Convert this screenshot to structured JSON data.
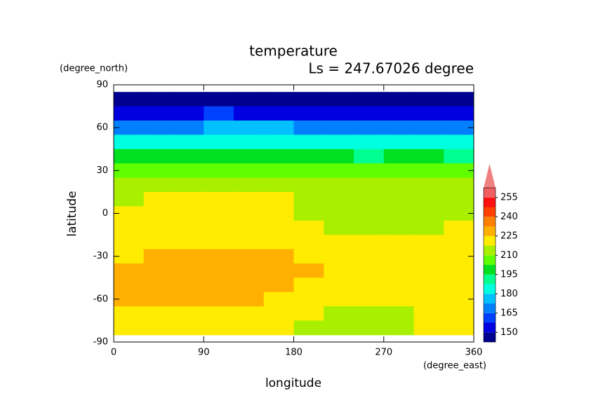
{
  "chart_data": {
    "type": "contour",
    "title": "temperature",
    "subtitle": "Ls = 247.67026 degree",
    "xlabel": "longitude",
    "ylabel": "latitude",
    "xunits": "(degree_east)",
    "yunits": "(degree_north)",
    "xlim": [
      0,
      360
    ],
    "ylim": [
      -90,
      90
    ],
    "xticks": [
      0,
      90,
      180,
      270,
      360
    ],
    "yticks": [
      -90,
      -60,
      -30,
      0,
      30,
      60,
      90
    ],
    "x": [
      15,
      45,
      75,
      105,
      135,
      165,
      195,
      225,
      255,
      285,
      315,
      345
    ],
    "y": [
      80,
      70,
      60,
      50,
      40,
      30,
      20,
      10,
      0,
      -10,
      -20,
      -30,
      -40,
      -50,
      -60,
      -70,
      -80
    ],
    "z": [
      [
        147,
        147,
        147,
        147,
        147,
        147,
        147,
        147,
        147,
        147,
        147,
        147
      ],
      [
        155,
        153,
        156,
        158,
        156,
        155,
        156,
        157,
        155,
        153,
        154,
        155
      ],
      [
        170,
        168,
        172,
        175,
        176,
        174,
        170,
        168,
        166,
        170,
        167,
        166
      ],
      [
        184,
        182,
        184,
        186,
        186,
        185,
        183,
        182,
        181,
        183,
        182,
        180
      ],
      [
        196,
        195,
        196,
        198,
        198,
        197,
        196,
        195,
        194,
        196,
        195,
        194
      ],
      [
        204,
        203,
        205,
        206,
        206,
        205,
        204,
        203,
        203,
        204,
        204,
        203
      ],
      [
        212,
        211,
        213,
        212,
        213,
        212,
        211,
        210,
        211,
        210,
        211,
        211
      ],
      [
        216,
        219,
        220,
        219,
        218,
        219,
        214,
        213,
        213,
        214,
        214,
        213
      ],
      [
        220,
        221,
        222,
        221,
        222,
        221,
        216,
        214,
        214,
        215,
        215,
        214
      ],
      [
        221,
        222,
        222,
        222,
        222,
        221,
        221,
        216,
        215,
        215,
        216,
        219
      ],
      [
        223,
        224,
        224,
        224,
        224,
        223,
        222,
        222,
        222,
        221,
        222,
        223
      ],
      [
        224,
        226,
        226,
        227,
        226,
        226,
        224,
        223,
        222,
        222,
        221,
        221
      ],
      [
        226,
        228,
        229,
        228,
        228,
        227,
        226,
        224,
        222,
        222,
        221,
        221
      ],
      [
        226,
        228,
        229,
        228,
        228,
        227,
        224,
        222,
        222,
        221,
        221,
        221
      ],
      [
        226,
        228,
        228,
        228,
        227,
        222,
        221,
        221,
        220,
        220,
        221,
        221
      ],
      [
        221,
        221,
        221,
        221,
        221,
        221,
        218,
        216,
        215,
        216,
        219,
        221
      ],
      [
        220,
        220,
        220,
        220,
        220,
        219,
        217,
        213,
        212,
        214,
        218,
        220
      ]
    ],
    "levels": [
      142.5,
      150,
      157.5,
      165,
      172.5,
      180,
      187.5,
      195,
      202.5,
      210,
      217.5,
      225,
      232.5,
      240,
      247.5,
      255,
      262.5
    ],
    "colors": [
      "#000090",
      "#0000e0",
      "#0040ff",
      "#0080ff",
      "#00c0ff",
      "#00ffe0",
      "#00ff90",
      "#00e020",
      "#60ff00",
      "#a8f000",
      "#ffec00",
      "#ffb000",
      "#ff8000",
      "#ff4000",
      "#ff1010",
      "#f06060"
    ],
    "over_color": "#f08080",
    "colorbar_ticks": [
      150,
      165,
      180,
      195,
      210,
      225,
      240,
      255
    ]
  }
}
